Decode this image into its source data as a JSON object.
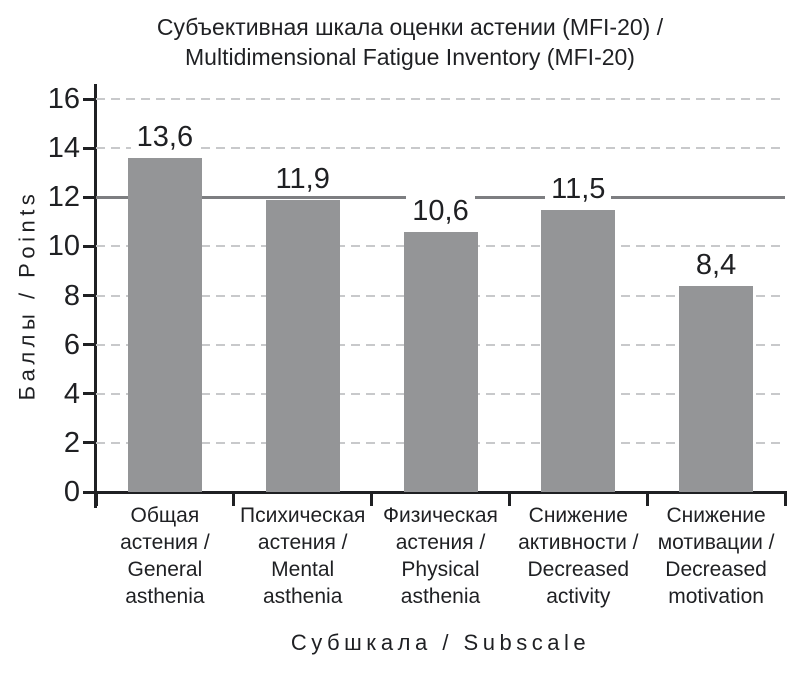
{
  "title": {
    "line1": "Субъективная шкала оценки астении (MFI-20) /",
    "line2": "Multidimensional Fatigue Inventory (MFI-20)"
  },
  "y_axis": {
    "label": "Баллы / Points",
    "ticks": [
      0,
      2,
      4,
      6,
      8,
      10,
      12,
      14,
      16
    ]
  },
  "x_axis": {
    "label": "Субшкала / Subscale"
  },
  "chart_data": {
    "type": "bar",
    "title": "Субъективная шкала оценки астении (MFI-20) / Multidimensional Fatigue Inventory (MFI-20)",
    "xlabel": "Субшкала / Subscale",
    "ylabel": "Баллы / Points",
    "categories": [
      "Общая астения / General asthenia",
      "Психическая астения / Mental asthenia",
      "Физическая астения / Physical asthenia",
      "Снижение активности / Decreased activity",
      "Снижение мотивации / Decreased motivation"
    ],
    "category_display_lines": [
      [
        "Общая",
        "астения /",
        "General",
        "asthenia"
      ],
      [
        "Психическая",
        "астения /",
        "Mental",
        "asthenia"
      ],
      [
        "Физическая",
        "астения /",
        "Physical",
        "asthenia"
      ],
      [
        "Снижение",
        "активности /",
        "Decreased",
        "activity"
      ],
      [
        "Снижение",
        "мотивации /",
        "Decreased",
        "motivation"
      ]
    ],
    "values": [
      13.6,
      11.9,
      10.6,
      11.5,
      8.4
    ],
    "value_labels": [
      "13,6",
      "11,9",
      "10,6",
      "11,5",
      "8,4"
    ],
    "ylim": [
      0,
      16
    ],
    "ytick_interval": 2,
    "reference_line_y": 12,
    "grid": "horizontal-dashed",
    "legend": "none",
    "bar_color": "#949597",
    "reference_line_color": "#7d7e81",
    "grid_color": "#c8c9cb",
    "axis_color": "#1f2023",
    "text_color": "#1f2023"
  }
}
